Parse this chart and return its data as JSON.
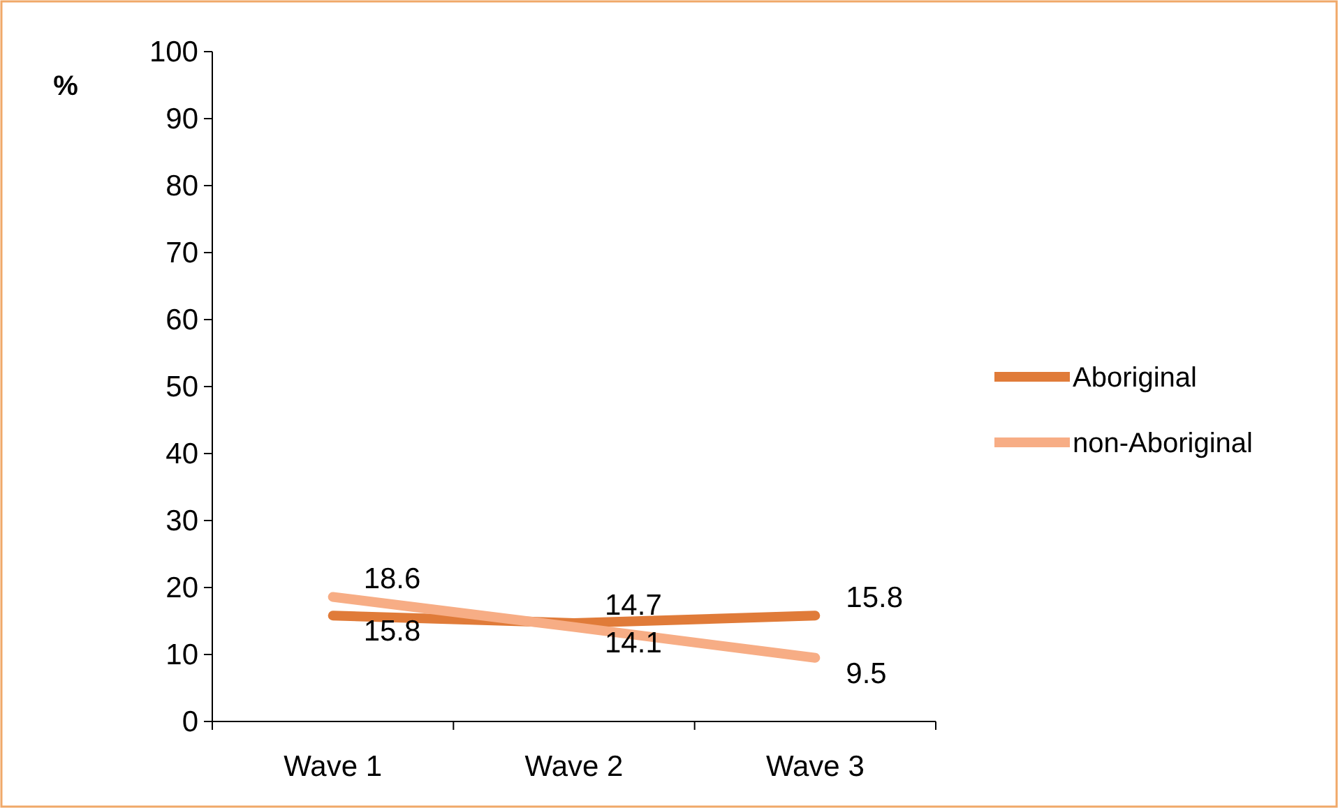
{
  "chart_data": {
    "type": "line",
    "ylabel": "%",
    "categories": [
      "Wave 1",
      "Wave 2",
      "Wave 3"
    ],
    "series": [
      {
        "name": "Aboriginal",
        "color": "#e07b39",
        "values": [
          15.8,
          14.7,
          15.8
        ]
      },
      {
        "name": "non-Aboriginal",
        "color": "#f7ad85",
        "values": [
          18.6,
          14.1,
          9.5
        ]
      }
    ],
    "ylim": [
      0,
      100
    ],
    "yticks": [
      0,
      10,
      20,
      30,
      40,
      50,
      60,
      70,
      80,
      90,
      100
    ],
    "data_labels": true,
    "legend": "right",
    "grid": false,
    "marker": "none",
    "line_style": "solid"
  }
}
